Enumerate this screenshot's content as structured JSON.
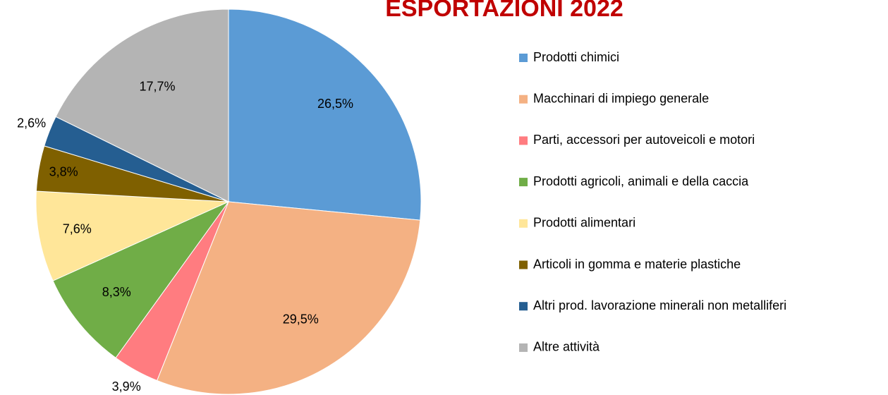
{
  "chart_data": {
    "type": "pie",
    "title": "ESPORTAZIONI 2022",
    "categories": [
      "Prodotti chimici",
      "Macchinari di impiego generale",
      "Parti, accessori per autoveicoli e motori",
      "Prodotti agricoli, animali e della caccia",
      "Prodotti alimentari",
      "Articoli in gomma e materie plastiche",
      "Altri prod. lavorazione minerali non metalliferi",
      "Altre attività"
    ],
    "values": [
      26.5,
      29.5,
      3.9,
      8.3,
      7.6,
      3.8,
      2.6,
      17.7
    ],
    "value_labels": [
      "26,5%",
      "29,5%",
      "3,9%",
      "8,3%",
      "7,6%",
      "3,8%",
      "2,6%",
      "17,7%"
    ],
    "colors": [
      "#5b9bd5",
      "#f4b183",
      "#ff7c80",
      "#70ad47",
      "#ffe699",
      "#7f6000",
      "#255e91",
      "#b4b4b4"
    ],
    "legend": "right"
  }
}
